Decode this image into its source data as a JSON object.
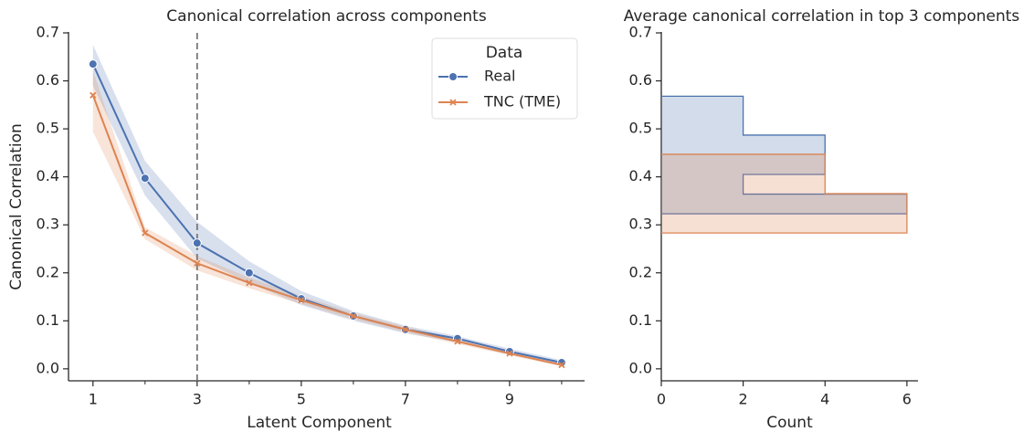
{
  "chart_data": [
    {
      "type": "line",
      "title": "Canonical correlation across components",
      "xlabel": "Latent Component",
      "ylabel": "Canonical Correlation",
      "x": [
        1,
        2,
        3,
        4,
        5,
        6,
        7,
        8,
        9,
        10
      ],
      "series": [
        {
          "name": "Real",
          "color": "#4c72b0",
          "marker": "o",
          "values": [
            0.635,
            0.397,
            0.262,
            0.2,
            0.146,
            0.11,
            0.082,
            0.063,
            0.036,
            0.013
          ],
          "lower": [
            0.59,
            0.361,
            0.23,
            0.179,
            0.133,
            0.1,
            0.074,
            0.055,
            0.03,
            0.008
          ],
          "upper": [
            0.675,
            0.433,
            0.306,
            0.224,
            0.162,
            0.12,
            0.09,
            0.068,
            0.042,
            0.018
          ]
        },
        {
          "name": "TNC (TME)",
          "color": "#dd8452",
          "marker": "x",
          "values": [
            0.57,
            0.283,
            0.22,
            0.179,
            0.143,
            0.11,
            0.082,
            0.057,
            0.032,
            0.008
          ],
          "lower": [
            0.494,
            0.27,
            0.205,
            0.168,
            0.135,
            0.103,
            0.076,
            0.052,
            0.028,
            0.005
          ],
          "upper": [
            0.622,
            0.295,
            0.235,
            0.19,
            0.152,
            0.117,
            0.088,
            0.062,
            0.037,
            0.012
          ]
        }
      ],
      "xlim": [
        0.53,
        10.44
      ],
      "xticks": [
        1,
        3,
        5,
        7,
        9
      ],
      "xminorticks": [
        2,
        4,
        6,
        8,
        10
      ],
      "ylim": [
        -0.025,
        0.7
      ],
      "yticks": [
        {
          "value": 0,
          "label": "0.0"
        },
        0.1,
        0.2,
        0.3,
        0.4,
        0.5,
        0.6,
        0.7
      ],
      "vline": 3,
      "legend_title": "Data",
      "legend": "upper right"
    },
    {
      "type": "histogram",
      "orientation": "horizontal",
      "title": "Average canonical correlation in top 3 components",
      "xlabel": "Count",
      "series": [
        {
          "name": "Real",
          "color": "#4c72b0",
          "bins": [
            0.323,
            0.364,
            0.405,
            0.446,
            0.487,
            0.528,
            0.568
          ],
          "values": [
            6,
            2,
            4,
            4,
            2,
            2
          ]
        },
        {
          "name": "TNC (TME)",
          "color": "#dd8452",
          "bins": [
            0.283,
            0.324,
            0.365,
            0.406,
            0.447
          ],
          "values": [
            6,
            6,
            4,
            4
          ]
        }
      ],
      "xlim": [
        0,
        6.27
      ],
      "xticks": [
        0,
        2,
        4,
        6
      ],
      "ylim": [
        -0.025,
        0.7
      ],
      "yticks": [
        {
          "value": 0,
          "label": "0.0"
        },
        0.1,
        0.2,
        0.3,
        0.4,
        0.5,
        0.6,
        0.7
      ]
    }
  ]
}
